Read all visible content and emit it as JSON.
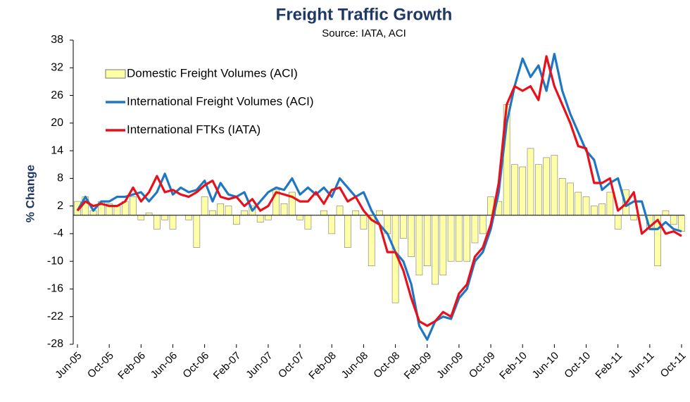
{
  "chart_data": {
    "type": "bar-line",
    "title": "Freight Traffic Growth",
    "subtitle": "Source: IATA, ACI",
    "y_label": "% Change",
    "categories": [
      "Jun-05",
      null,
      null,
      null,
      "Oct-05",
      null,
      null,
      null,
      "Feb-06",
      null,
      null,
      null,
      "Jun-06",
      null,
      null,
      null,
      "Oct-06",
      null,
      null,
      null,
      "Feb-07",
      null,
      null,
      null,
      "Jun-07",
      null,
      null,
      null,
      "Oct-07",
      null,
      null,
      null,
      "Feb-08",
      null,
      null,
      null,
      "Jun-08",
      null,
      null,
      null,
      "Oct-08",
      null,
      null,
      null,
      "Feb-09",
      null,
      null,
      null,
      "Jun-09",
      null,
      null,
      null,
      "Oct-09",
      null,
      null,
      null,
      "Feb-10",
      null,
      null,
      null,
      "Jun-10",
      null,
      null,
      null,
      "Oct-10",
      null,
      null,
      null,
      "Feb-11",
      null,
      null,
      null,
      "Jun-11",
      null,
      null,
      null,
      "Oct-11"
    ],
    "ylim": [
      -28,
      38
    ],
    "yticks": [
      38,
      32,
      26,
      20,
      14,
      8,
      2,
      -4,
      -10,
      -16,
      -22,
      -28
    ],
    "legend": "upper-left",
    "series": [
      {
        "name": "Domestic Freight Volumes (ACI)",
        "kind": "bar",
        "color": "#ffffa8",
        "values": [
          3,
          4,
          1,
          3,
          2.5,
          2,
          3,
          4,
          -1,
          0.5,
          -3,
          -1,
          -3,
          0,
          -1,
          -7,
          4,
          1,
          2.5,
          2,
          -2,
          1,
          2,
          -1.5,
          -1,
          5.5,
          2.5,
          5,
          -1,
          -3,
          0,
          1,
          -4,
          2,
          -7,
          1,
          -3,
          -11,
          1,
          -4,
          -19,
          -5,
          -9,
          -13,
          -11,
          -15,
          -13,
          -10,
          -10,
          -10,
          -6,
          -4,
          4,
          3,
          24,
          11,
          10.5,
          14.5,
          11,
          12.5,
          13,
          8,
          7,
          5,
          4,
          2,
          2.5,
          5,
          -3,
          5.5,
          -1,
          0,
          -3,
          -11,
          1,
          -2,
          -3.5
        ]
      },
      {
        "name": "International Freight Volumes (ACI)",
        "kind": "line",
        "color": "#1f77c4",
        "values": [
          1,
          4,
          1,
          3,
          3,
          4,
          4,
          4.5,
          5,
          3,
          5,
          9,
          4.5,
          6,
          5,
          5.5,
          7.5,
          3,
          7,
          4.5,
          4,
          5,
          1,
          3,
          5,
          6,
          5.5,
          8,
          4.5,
          6,
          4.5,
          6,
          4,
          8,
          6,
          4,
          5,
          1,
          -2,
          -4,
          -8,
          -10,
          -15,
          -24,
          -27,
          -23,
          -22,
          -22.5,
          -18,
          -16,
          -10,
          -8,
          -3,
          5,
          20,
          28,
          34,
          30,
          32.5,
          27,
          35,
          27,
          22,
          18,
          14,
          12,
          5.5,
          7,
          8,
          2,
          3,
          3,
          -3,
          -3,
          -1.5,
          -3,
          -3.5
        ]
      },
      {
        "name": "International FTKs (IATA)",
        "kind": "line",
        "color": "#e8101a",
        "values": [
          1,
          3,
          2,
          2.5,
          2,
          2,
          3,
          6,
          3,
          5,
          8.5,
          5,
          5.5,
          4.5,
          4,
          5,
          6.5,
          7.5,
          4,
          3.5,
          4,
          2,
          3.5,
          1,
          2,
          5,
          4.5,
          4,
          3,
          3,
          5,
          2.5,
          5.5,
          6,
          3,
          4,
          1,
          -1,
          -2,
          -8,
          -8,
          -12,
          -18,
          -23,
          -24,
          -23,
          -21,
          -22,
          -17,
          -15,
          -9,
          -7,
          -2,
          7,
          24,
          28,
          27,
          28,
          25,
          34.5,
          28,
          24,
          20,
          15,
          14.5,
          7,
          7,
          8,
          1,
          2.5,
          5,
          -4,
          -2.5,
          -1,
          -4,
          -3.5,
          -4.5
        ]
      }
    ]
  }
}
